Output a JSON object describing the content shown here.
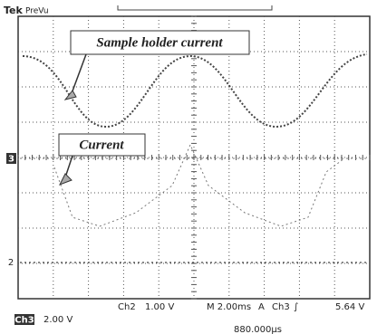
{
  "header": {
    "brand": "Tek",
    "mode": "PreVu"
  },
  "annotations": [
    {
      "label": "Sample holder current"
    },
    {
      "label": "Current"
    }
  ],
  "channel_markers": [
    "3",
    "2"
  ],
  "status": {
    "ch2_label": "Ch2",
    "ch2_scale": "1.00 V",
    "timebase": "M 2.00ms",
    "trigger_mode": "A",
    "trigger_source": "Ch3",
    "trigger_level": "5.64 V"
  },
  "footer": {
    "ch3_label": "Ch3",
    "ch3_scale": "2.00 V",
    "position": "880.000μs"
  }
}
